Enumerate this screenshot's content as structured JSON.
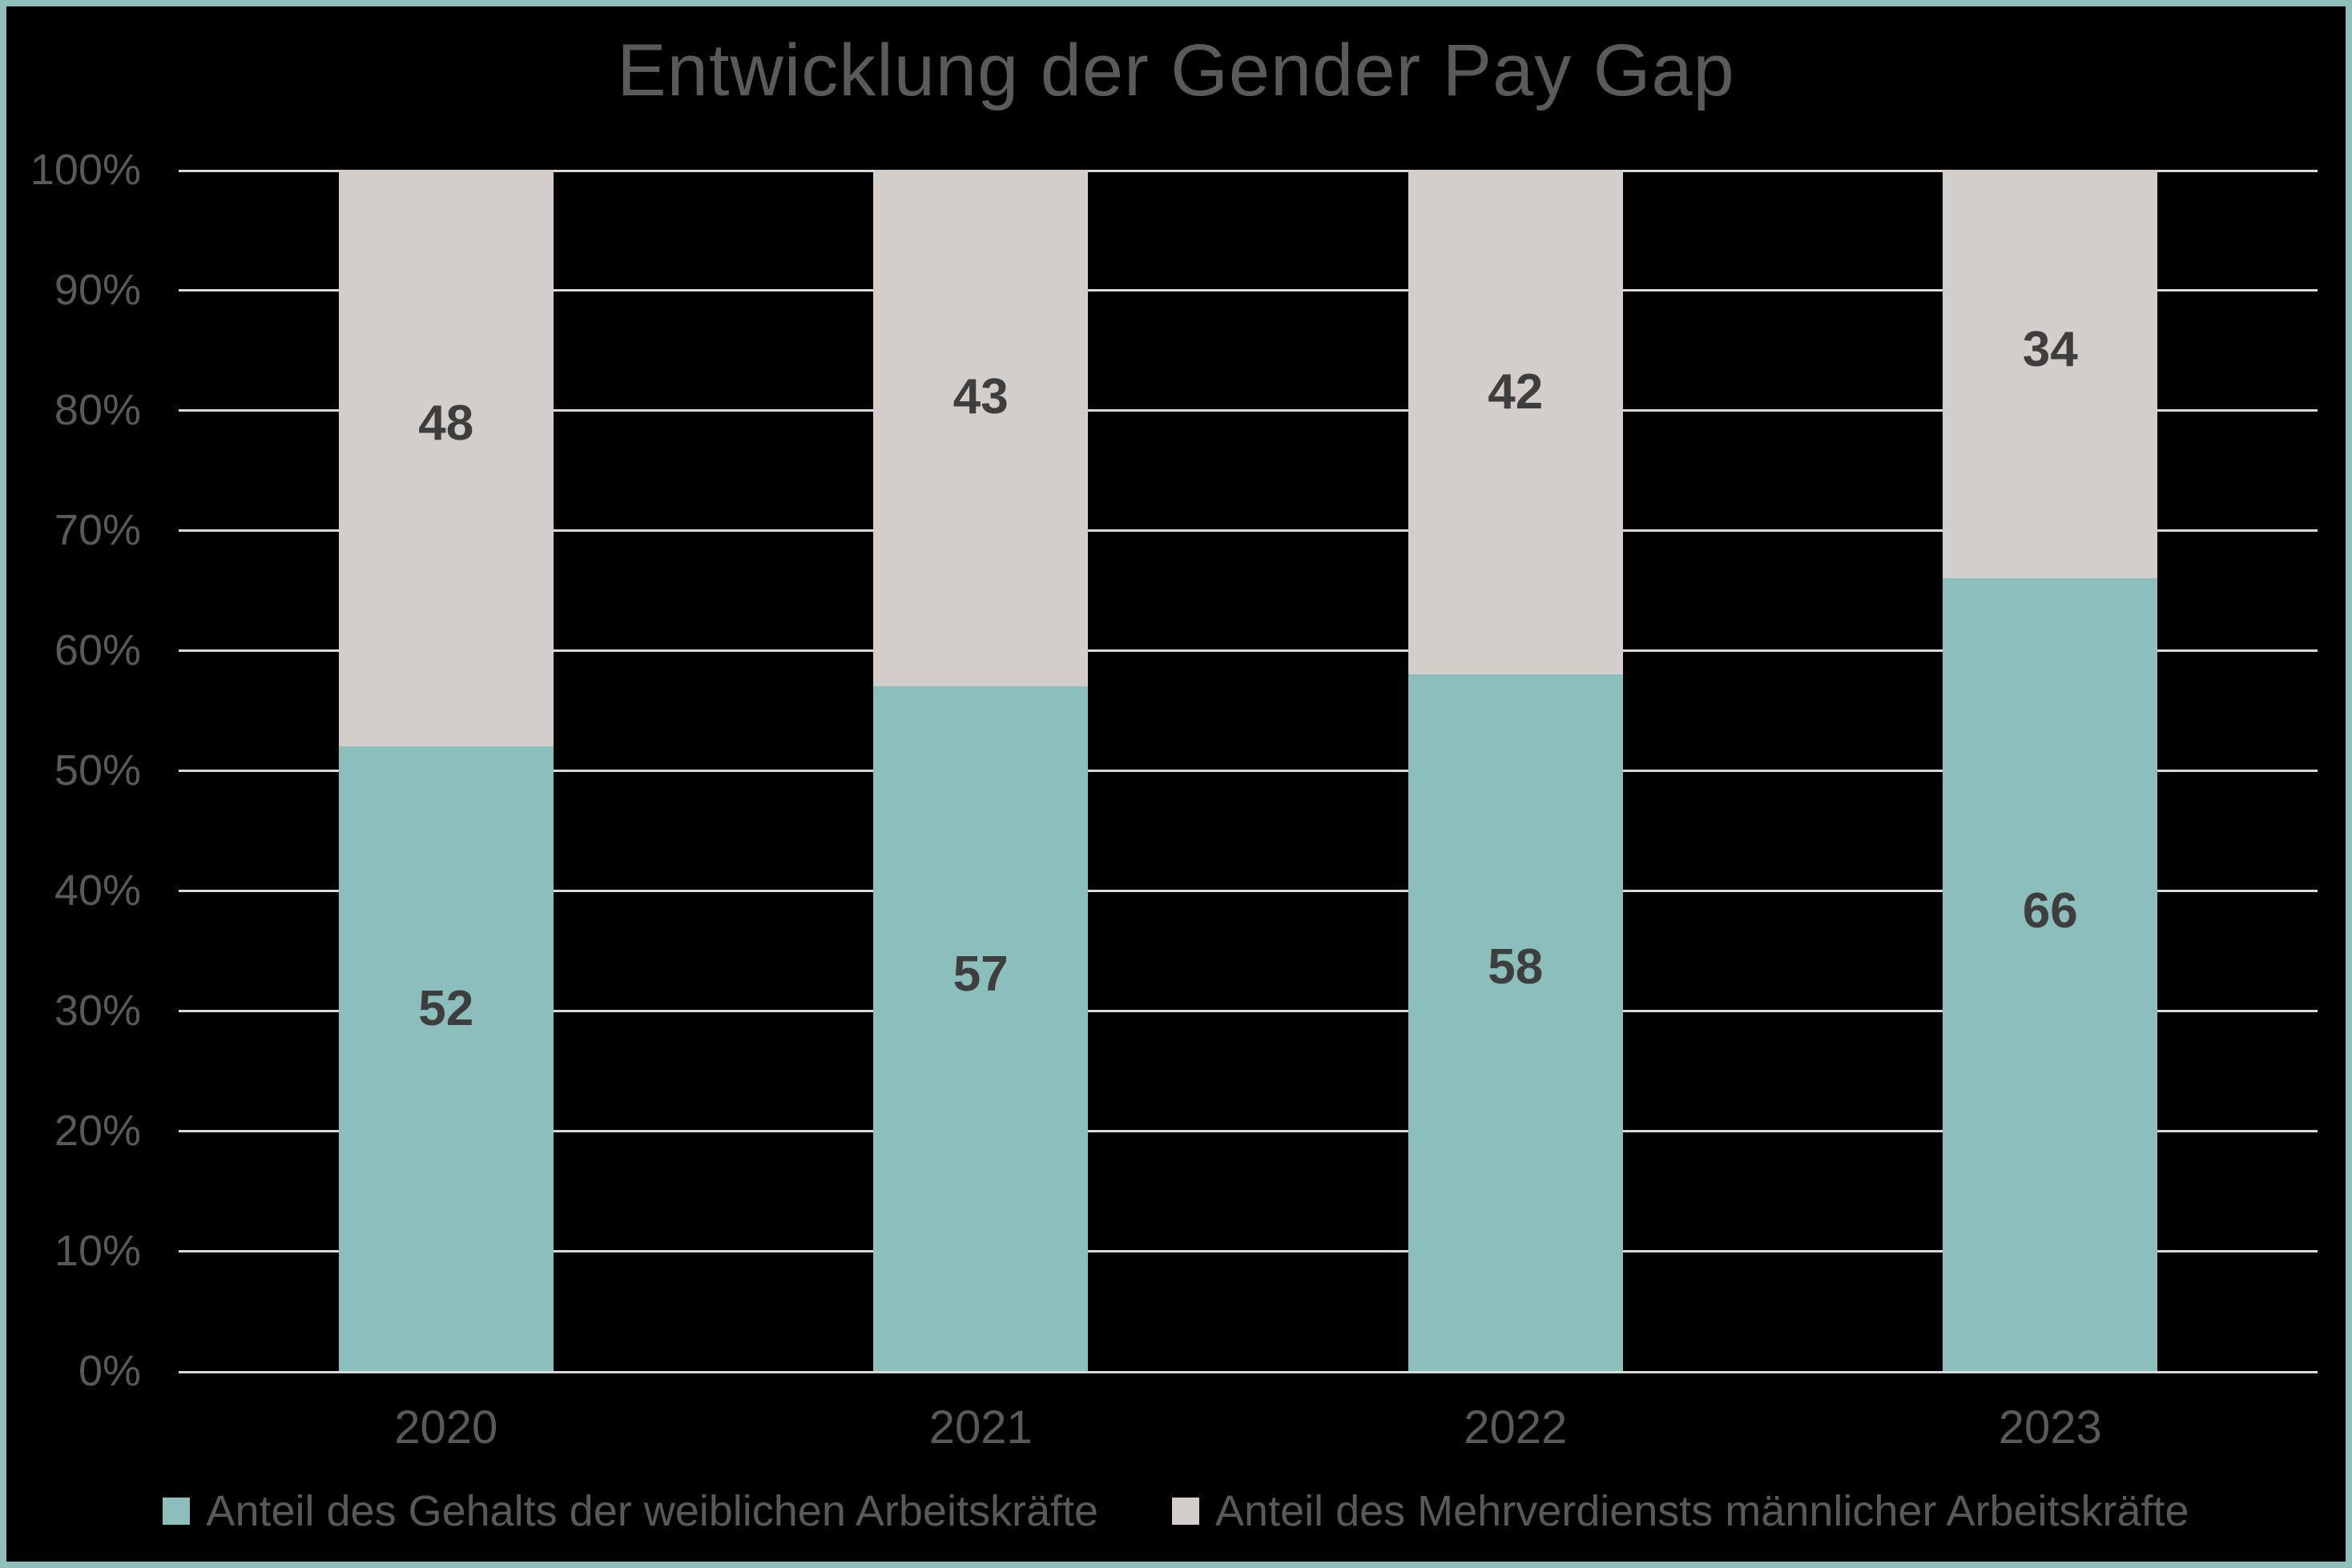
{
  "title": "Entwicklung der Gender Pay Gap",
  "colors": {
    "background": "#000000",
    "frame_border": "#8FBEBB",
    "gridline": "#D9D9D9",
    "title_text": "#5A5A5A",
    "axis_text": "#595959",
    "bar_value_text": "#3E3E3E",
    "series_female": "#8CBFBC",
    "series_male_gap": "#D3CEC9"
  },
  "chart_data": {
    "type": "bar",
    "stacked": true,
    "title": "Entwicklung der Gender Pay Gap",
    "categories": [
      "2020",
      "2021",
      "2022",
      "2023"
    ],
    "series": [
      {
        "name": "Anteil des Gehalts der weiblichen Arbeitskräfte",
        "values": [
          52,
          57,
          58,
          66
        ],
        "color": "#8CBFBC"
      },
      {
        "name": "Anteil des Mehrverdiensts männlicher Arbeitskräfte",
        "values": [
          48,
          43,
          42,
          34
        ],
        "color": "#D3CEC9"
      }
    ],
    "xlabel": "",
    "ylabel": "",
    "ylim": [
      0,
      100
    ],
    "ytick_step": 10,
    "ytick_labels": [
      "0%",
      "10%",
      "20%",
      "30%",
      "40%",
      "50%",
      "60%",
      "70%",
      "80%",
      "90%",
      "100%"
    ],
    "grid": true,
    "data_labels": true,
    "legend_position": "bottom"
  }
}
